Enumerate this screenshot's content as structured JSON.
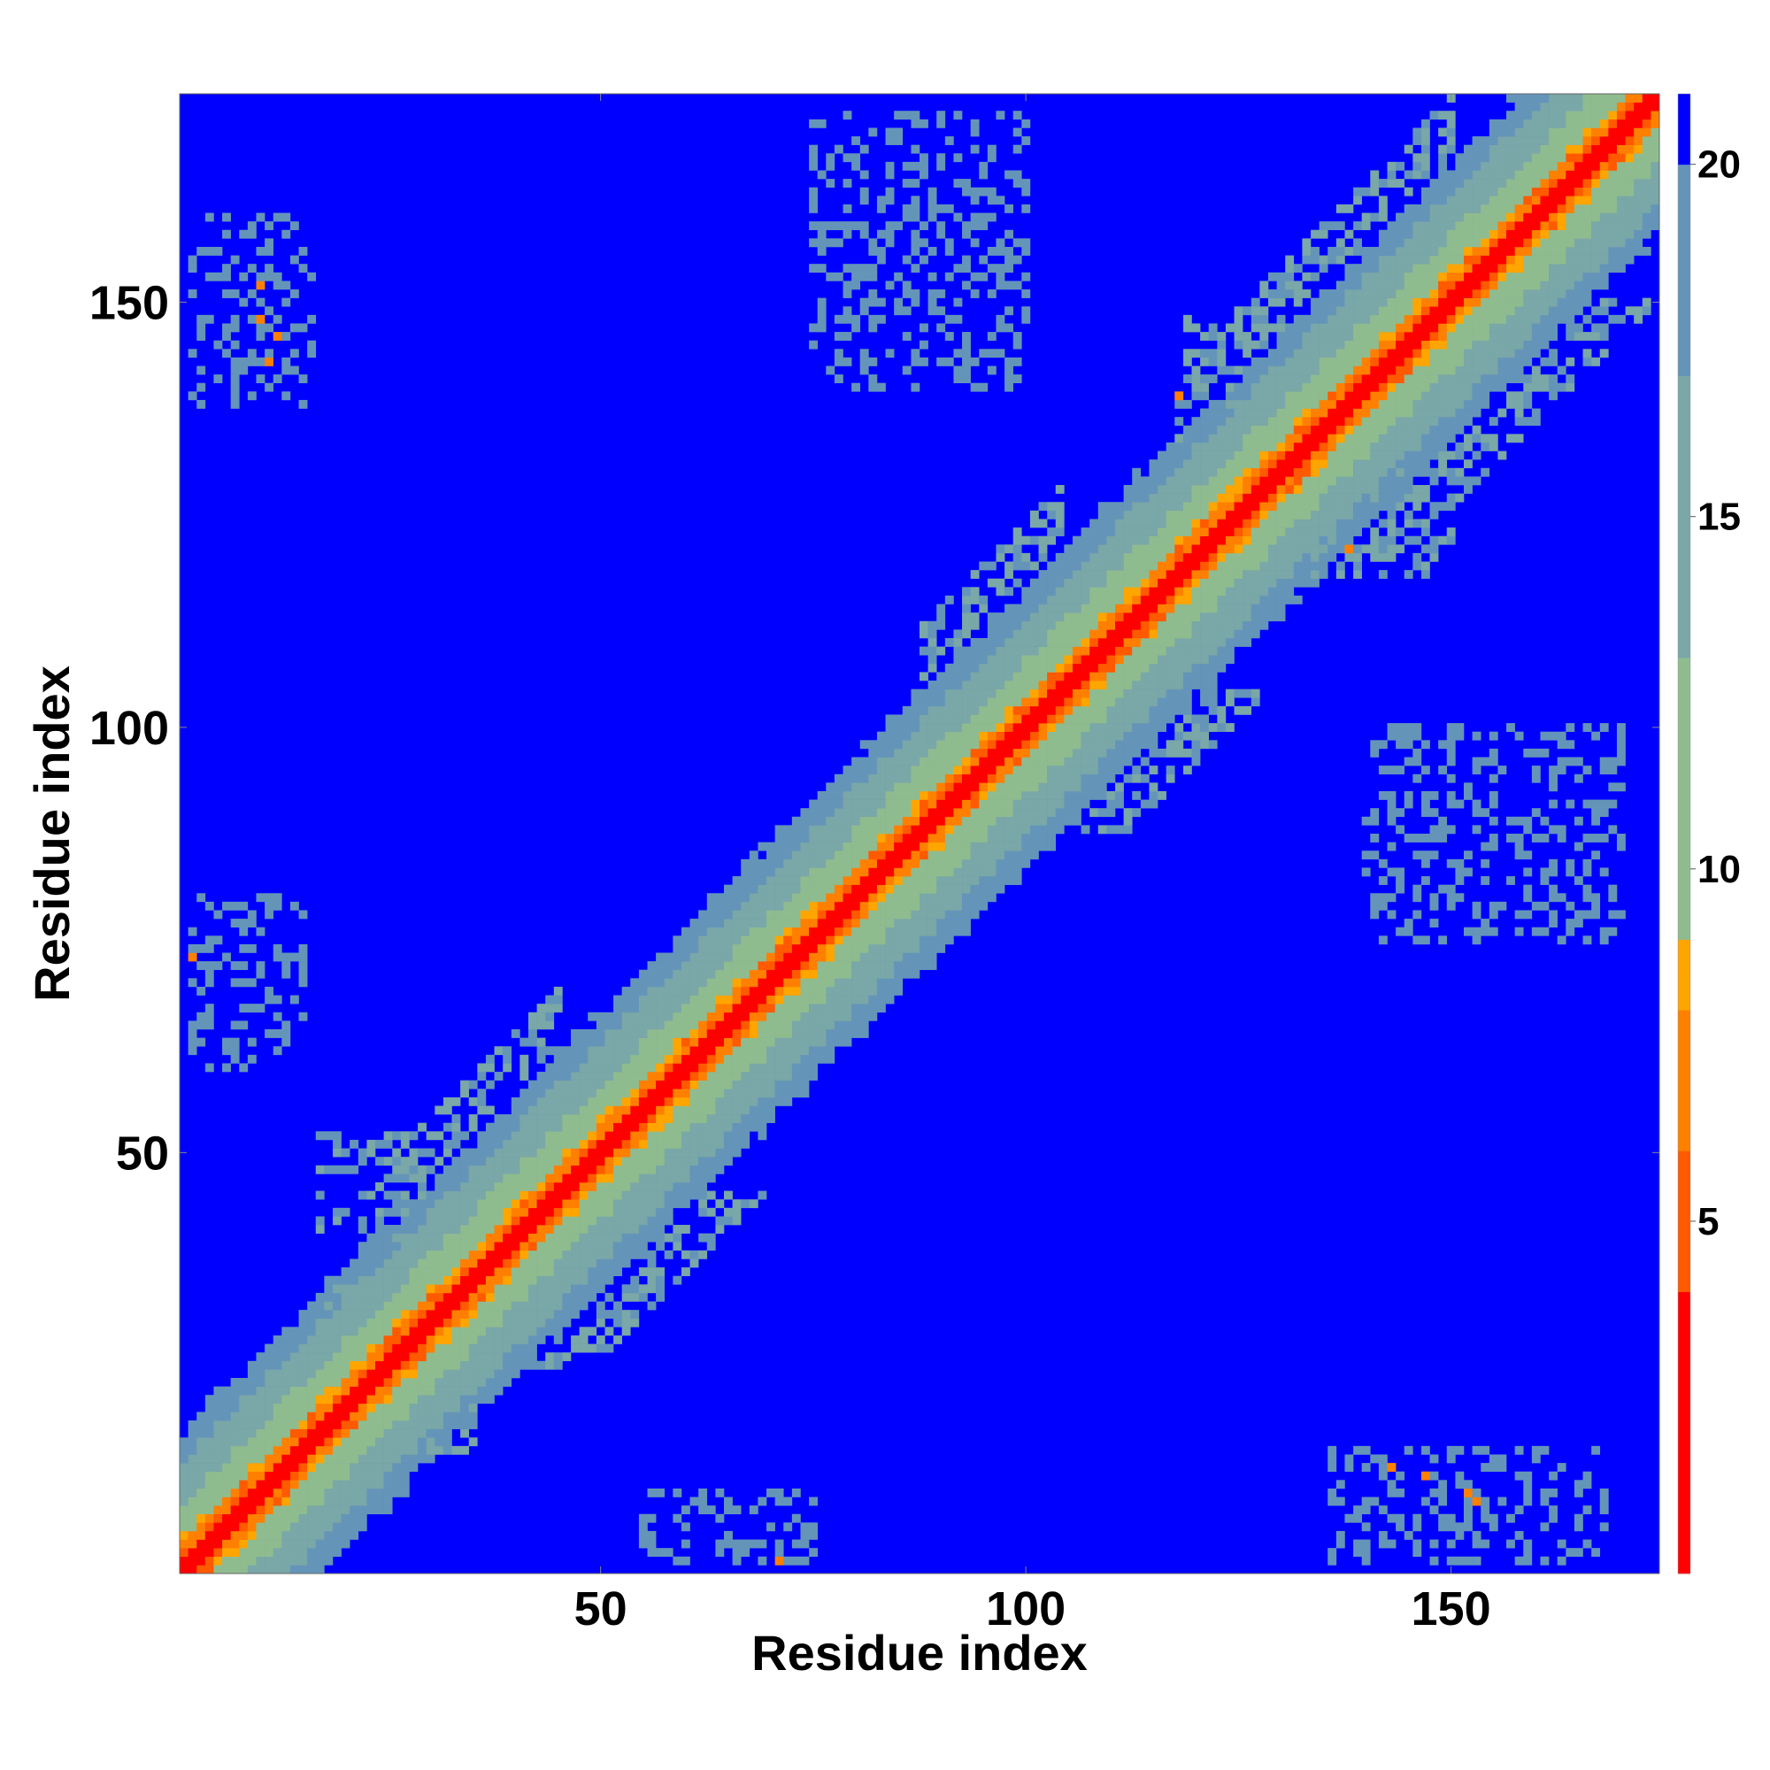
{
  "chart_data": {
    "type": "heatmap",
    "title": "",
    "xlabel": "Residue index",
    "ylabel": "Residue index",
    "n_residues": 174,
    "xlim": [
      0.5,
      174.5
    ],
    "ylim": [
      0.5,
      174.5
    ],
    "xticks": [
      50,
      100,
      150
    ],
    "yticks": [
      50,
      100,
      150
    ],
    "colorbar": {
      "range": [
        0,
        21
      ],
      "ticks": [
        5,
        10,
        15,
        20
      ],
      "colors": {
        "0": "#ff0000",
        "4": "#ff5a00",
        "6": "#ff8000",
        "8": "#ffa500",
        "9": "#8fbc8f",
        "13": "#7aa7a7",
        "17": "#6495b9",
        "20": "#0000ff"
      }
    },
    "diagonal_band": {
      "core": "distance grows with |i-j|: ~0 on diagonal, 3.8 at |i-j|=1, up to ~20 near |i-j|=17",
      "widened_segments": [
        [
          25,
          45
        ],
        [
          88,
          104
        ],
        [
          120,
          150
        ]
      ]
    },
    "long_range_contact_regions": [
      {
        "i": [
          2,
          16
        ],
        "j": [
          138,
          160
        ],
        "value": 17
      },
      {
        "i": [
          2,
          15
        ],
        "j": [
          60,
          80
        ],
        "value": 17
      },
      {
        "i": [
          17,
          35
        ],
        "j": [
          40,
          52
        ],
        "value": 16
      },
      {
        "i": [
          18,
          35
        ],
        "j": [
          15,
          34
        ],
        "value": 14
      },
      {
        "i": [
          55,
          75
        ],
        "j": [
          2,
          10
        ],
        "value": 17
      },
      {
        "i": [
          75,
          100
        ],
        "j": [
          140,
          172
        ],
        "value": 17
      },
      {
        "i": [
          140,
          170
        ],
        "j": [
          75,
          100
        ],
        "value": 17
      },
      {
        "i": [
          136,
          168
        ],
        "j": [
          2,
          15
        ],
        "value": 17
      },
      {
        "i": [
          118,
          132
        ],
        "j": [
          130,
          148
        ],
        "value": 16
      },
      {
        "i": [
          130,
          150
        ],
        "j": [
          118,
          132
        ],
        "value": 16
      }
    ],
    "close_contacts": [
      {
        "i": 10,
        "j": 148,
        "value": 6
      },
      {
        "i": 11,
        "j": 143,
        "value": 7
      },
      {
        "i": 12,
        "j": 146,
        "value": 6
      },
      {
        "i": 10,
        "j": 152,
        "value": 7
      },
      {
        "i": 2,
        "j": 73,
        "value": 6
      },
      {
        "i": 71,
        "j": 2,
        "value": 7
      },
      {
        "i": 118,
        "j": 139,
        "value": 6
      },
      {
        "i": 138,
        "j": 121,
        "value": 6
      },
      {
        "i": 143,
        "j": 13,
        "value": 7
      },
      {
        "i": 147,
        "j": 12,
        "value": 6
      },
      {
        "i": 152,
        "j": 10,
        "value": 7
      },
      {
        "i": 153,
        "j": 9,
        "value": 6
      }
    ]
  }
}
